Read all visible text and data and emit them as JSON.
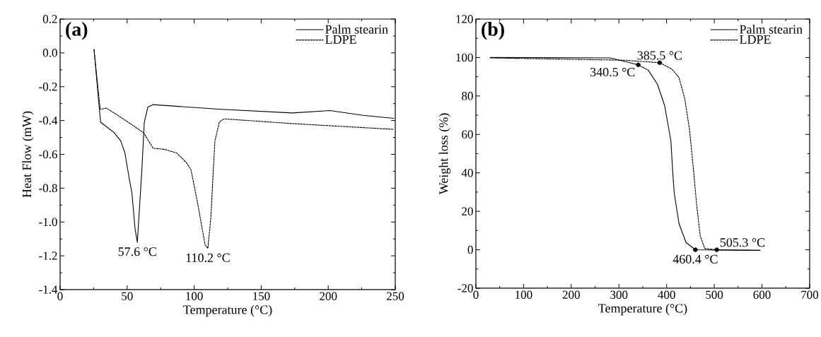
{
  "chart_data": [
    {
      "type": "line",
      "title": "(a)",
      "xlabel": "Temperature (°C)",
      "ylabel": "Heat Flow (mW)",
      "xlim": [
        0,
        250
      ],
      "ylim": [
        -1.4,
        0.2
      ],
      "xticks": [
        0,
        50,
        100,
        150,
        200,
        250
      ],
      "yticks": [
        -1.4,
        -1.2,
        {
          "value": -1.0,
          "label": "-1.0"
        },
        -0.8,
        -0.6,
        -0.4,
        -0.2,
        {
          "value": 0,
          "label": "0.0"
        },
        0.2
      ],
      "legend": "top right",
      "grid": false,
      "series": [
        {
          "name": "Palm stearin",
          "color": "#000000",
          "line_style": "solid",
          "x": [
            25.3,
            30.2,
            35.2,
            40.1,
            45.2,
            48.3,
            51.5,
            53.6,
            55.9,
            57.6,
            61.0,
            62.8,
            65.5,
            69.4,
            120.4,
            173.2,
            201.3,
            225.9,
            248.8
          ],
          "values": [
            0.02,
            -0.41,
            -0.44,
            -0.47,
            -0.52,
            -0.59,
            -0.74,
            -0.83,
            -1.04,
            -1.12,
            -0.69,
            -0.41,
            -0.32,
            -0.306,
            -0.334,
            -0.355,
            -0.341,
            -0.369,
            -0.387
          ]
        },
        {
          "name": "LDPE",
          "color": "#000000",
          "line_style": "dashed",
          "x": [
            25.3,
            29.9,
            34.6,
            43.0,
            53.6,
            62.4,
            69.4,
            78.2,
            87.0,
            94.0,
            97.6,
            102.8,
            108.1,
            110.2,
            112.5,
            114.3,
            115.5,
            118.7,
            122.2,
            173.2,
            248.8
          ],
          "values": [
            0.02,
            -0.334,
            -0.327,
            -0.369,
            -0.425,
            -0.473,
            -0.564,
            -0.571,
            -0.592,
            -0.647,
            -0.69,
            -0.898,
            -1.135,
            -1.156,
            -0.968,
            -0.69,
            -0.52,
            -0.41,
            -0.39,
            -0.418,
            -0.452
          ]
        }
      ],
      "annotations": [
        {
          "text": "57.6 °C",
          "x": 57.6,
          "y": -1.12
        },
        {
          "text": "110.2 °C",
          "x": 110.2,
          "y": -1.156
        }
      ]
    },
    {
      "type": "line",
      "title": "(b)",
      "xlabel": "Temperature (°C)",
      "ylabel": "Weight loss (%)",
      "xlim": [
        0,
        700
      ],
      "ylim": [
        -20,
        120
      ],
      "xticks": [
        0,
        100,
        200,
        300,
        400,
        500,
        600,
        700
      ],
      "yticks": [
        -20,
        0,
        20,
        40,
        60,
        80,
        100,
        120
      ],
      "legend": "top right",
      "grid": false,
      "series": [
        {
          "name": "Palm stearin",
          "color": "#000000",
          "line_style": "solid",
          "x": [
            30,
            282,
            340.5,
            361.5,
            381,
            396,
            409,
            413,
            416,
            426,
            440.7,
            460.4,
            596
          ],
          "values": [
            100,
            99.8,
            96.2,
            93.4,
            86,
            74.9,
            56.6,
            40,
            29.5,
            13.6,
            3.8,
            0,
            -0.3
          ]
        },
        {
          "name": "LDPE",
          "color": "#000000",
          "line_style": "dashed",
          "x": [
            30,
            312,
            385.5,
            411,
            425.8,
            438,
            448,
            457,
            463,
            470.4,
            480,
            505.3,
            596
          ],
          "values": [
            99.8,
            98.6,
            97.3,
            94,
            89.7,
            78.7,
            62.7,
            40,
            23.4,
            7.4,
            0.7,
            0,
            -0.3
          ]
        },
        {
          "type": "scatter",
          "color": "#000000",
          "marker": "circle",
          "x": [
            340.5,
            385.5,
            460.4,
            505.3
          ],
          "values": [
            96.2,
            97.3,
            0,
            0
          ]
        }
      ],
      "annotations": [
        {
          "text": "340.5 °C",
          "x": 340.5,
          "y": 96.2
        },
        {
          "text": "385.5 °C",
          "x": 385.5,
          "y": 97.3
        },
        {
          "text": "460.4 °C",
          "x": 460.4,
          "y": 0
        },
        {
          "text": "505.3 °C",
          "x": 505.3,
          "y": 0
        }
      ]
    }
  ]
}
